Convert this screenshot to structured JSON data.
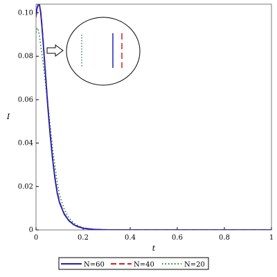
{
  "chart_data": {
    "type": "line",
    "title": "",
    "xlabel": "t",
    "ylabel": "I",
    "xlim": [
      0,
      1
    ],
    "ylim": [
      0,
      0.104
    ],
    "x_ticks": [
      "0",
      "0.2",
      "0.4",
      "0.6",
      "0.8",
      "1"
    ],
    "x_tick_values": [
      0,
      0.2,
      0.4,
      0.6,
      0.8,
      1
    ],
    "y_ticks": [
      "0",
      "0.02",
      "0.04",
      "0.06",
      "0.08",
      "0.10"
    ],
    "y_tick_values": [
      0,
      0.02,
      0.04,
      0.06,
      0.08,
      0.1
    ],
    "grid": false,
    "legend_position": "bottom",
    "series": [
      {
        "name": "N=60",
        "color": "#1f1fb4",
        "style": "solid",
        "x": [
          0,
          0.005,
          0.01,
          0.015,
          0.02,
          0.025,
          0.03,
          0.04,
          0.05,
          0.06,
          0.07,
          0.08,
          0.09,
          0.1,
          0.12,
          0.14,
          0.16,
          0.18,
          0.2,
          0.22,
          0.25,
          0.3,
          0.35,
          0.4,
          0.5,
          0.6,
          0.8,
          1.0
        ],
        "y": [
          0.099,
          0.1025,
          0.104,
          0.1035,
          0.1,
          0.094,
          0.087,
          0.072,
          0.057,
          0.044,
          0.033,
          0.024,
          0.017,
          0.0125,
          0.0072,
          0.0042,
          0.0024,
          0.0014,
          0.0008,
          0.0005,
          0.0002,
          5e-05,
          2e-05,
          0,
          0,
          0,
          0,
          0
        ]
      },
      {
        "name": "N=40",
        "color": "#cc1f1f",
        "style": "dashed",
        "x": [
          0,
          0.005,
          0.01,
          0.015,
          0.02,
          0.025,
          0.03,
          0.04,
          0.05,
          0.06,
          0.07,
          0.08,
          0.09,
          0.1,
          0.12,
          0.14,
          0.16,
          0.18,
          0.2,
          0.22,
          0.25,
          0.3,
          0.35,
          0.4,
          0.5,
          0.6,
          0.8,
          1.0
        ],
        "y": [
          0.098,
          0.1022,
          0.1039,
          0.1036,
          0.1005,
          0.0945,
          0.0875,
          0.0725,
          0.0575,
          0.0445,
          0.0335,
          0.0245,
          0.0175,
          0.0128,
          0.0074,
          0.0043,
          0.0025,
          0.0015,
          0.0009,
          0.0005,
          0.0002,
          5e-05,
          2e-05,
          0,
          0,
          0,
          0,
          0
        ]
      },
      {
        "name": "N=20",
        "color": "#1a7a2a",
        "style": "dotted",
        "x": [
          0,
          0.005,
          0.01,
          0.015,
          0.02,
          0.03,
          0.04,
          0.05,
          0.06,
          0.07,
          0.08,
          0.09,
          0.1,
          0.12,
          0.14,
          0.16,
          0.18,
          0.2,
          0.22,
          0.25,
          0.3,
          0.35,
          0.4,
          0.5,
          0.6,
          0.8,
          1.0
        ],
        "y": [
          0.091,
          0.093,
          0.092,
          0.089,
          0.085,
          0.077,
          0.068,
          0.058,
          0.048,
          0.038,
          0.03,
          0.022,
          0.016,
          0.0095,
          0.0055,
          0.0032,
          0.0018,
          0.001,
          0.0006,
          0.0003,
          0.0001,
          3e-05,
          0,
          0,
          0,
          0,
          0
        ]
      }
    ],
    "annotations": [
      {
        "type": "zoom-circle",
        "description_lines": [
          "dotted-green",
          "solid-blue",
          "dashed-red"
        ]
      }
    ]
  },
  "legend": {
    "items": [
      {
        "label": "N=60",
        "color": "#1f1fb4",
        "style": "solid"
      },
      {
        "label": "N=40",
        "color": "#cc1f1f",
        "style": "dashed"
      },
      {
        "label": "N=20",
        "color": "#1a7a2a",
        "style": "dotted"
      }
    ]
  }
}
